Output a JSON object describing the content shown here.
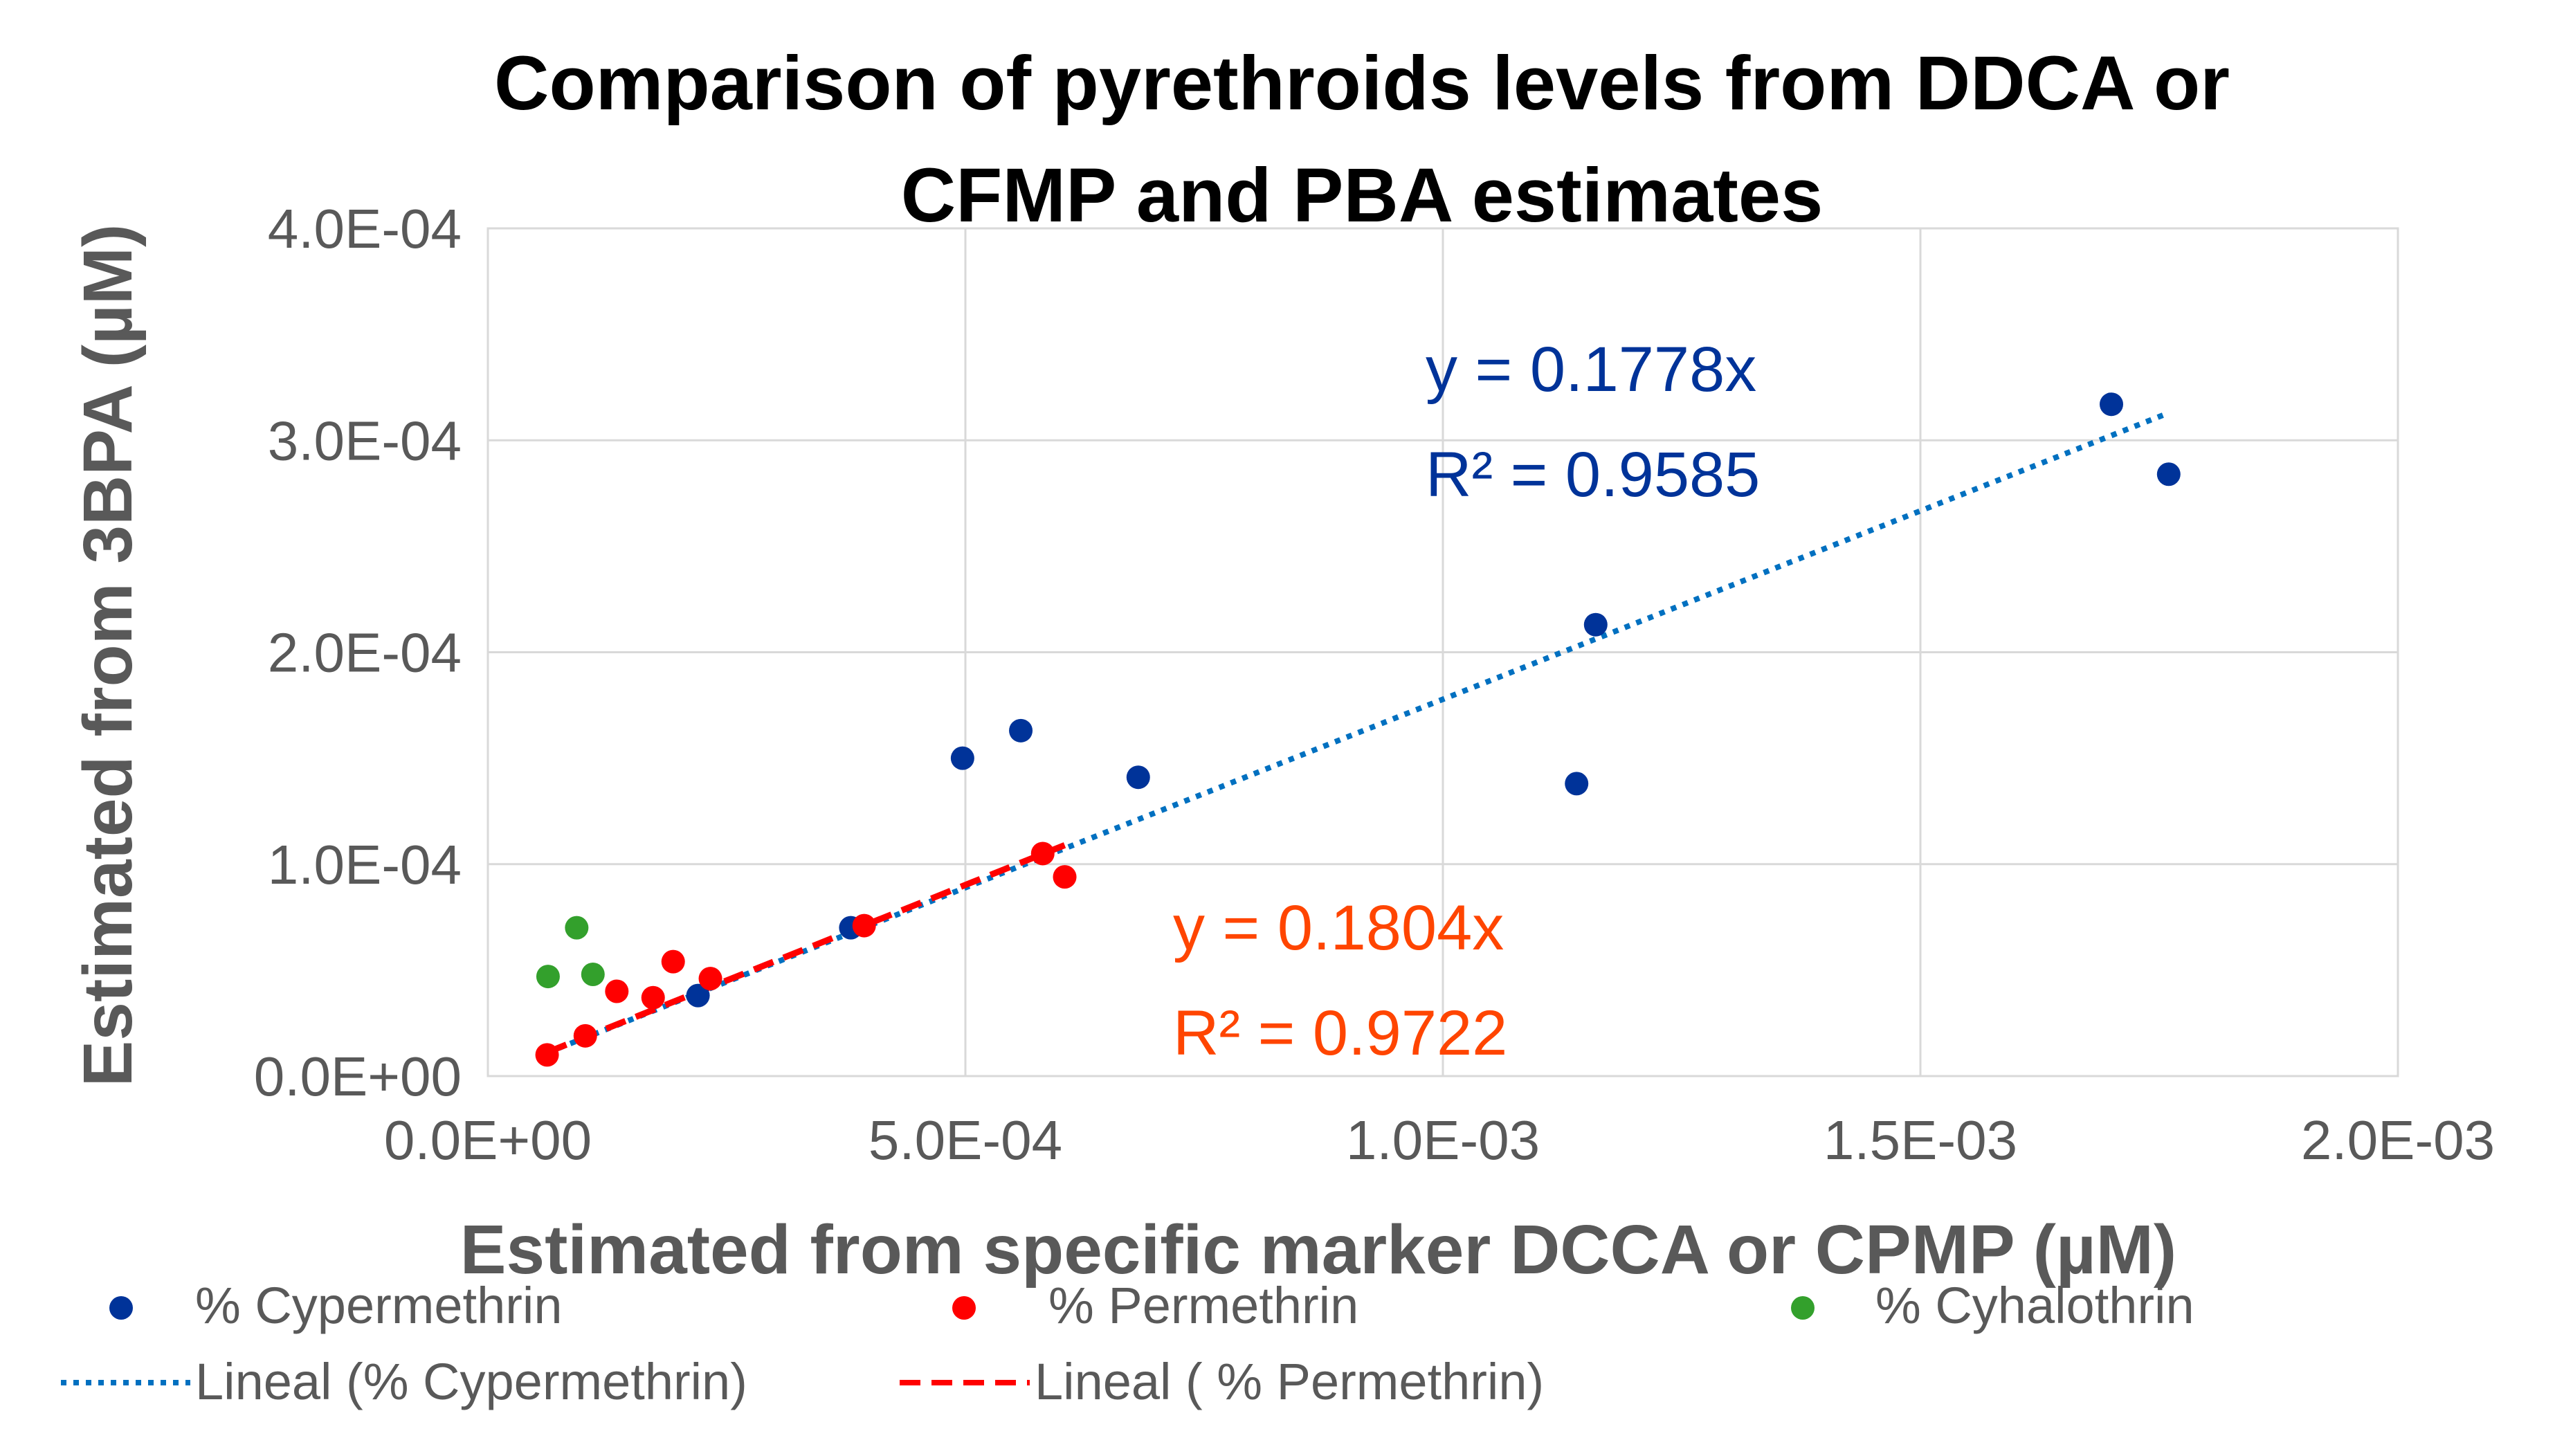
{
  "chart_data": {
    "type": "scatter",
    "title": "Comparison of pyrethroids levels from DDCA or CFMP and PBA estimates",
    "title_lines": [
      "Comparison of pyrethroids levels from DDCA or",
      "CFMP and PBA estimates"
    ],
    "xlabel": "Estimated from specific marker DCCA or CPMP (µM)",
    "ylabel": "Estimated from 3BPA (µM)",
    "xlim": [
      0,
      0.002
    ],
    "ylim": [
      0,
      0.0004
    ],
    "x_ticks": [
      0,
      0.0005,
      0.001,
      0.0015,
      0.002
    ],
    "x_tick_labels": [
      "0.0E+00",
      "5.0E-04",
      "1.0E-03",
      "1.5E-03",
      "2.0E-03"
    ],
    "y_ticks": [
      0,
      0.0001,
      0.0002,
      0.0003,
      0.0004
    ],
    "y_tick_labels": [
      "0.0E+00",
      "1.0E-04",
      "2.0E-04",
      "3.0E-04",
      "4.0E-04"
    ],
    "grid": true,
    "legend_position": "bottom",
    "series": [
      {
        "name": "% Cypermethrin",
        "color": "#003399",
        "points": [
          {
            "x": 0.00022,
            "y": 3.8e-05
          },
          {
            "x": 0.00038,
            "y": 7e-05
          },
          {
            "x": 0.000497,
            "y": 0.00015
          },
          {
            "x": 0.000558,
            "y": 0.000163
          },
          {
            "x": 0.000681,
            "y": 0.000141
          },
          {
            "x": 0.00114,
            "y": 0.000138
          },
          {
            "x": 0.00116,
            "y": 0.000213
          },
          {
            "x": 0.0017,
            "y": 0.000317
          },
          {
            "x": 0.00176,
            "y": 0.000284
          }
        ]
      },
      {
        "name": "% Permethrin",
        "color": "#ff0000",
        "points": [
          {
            "x": 6.2e-05,
            "y": 1e-05
          },
          {
            "x": 0.000102,
            "y": 1.9e-05
          },
          {
            "x": 0.000135,
            "y": 4e-05
          },
          {
            "x": 0.000173,
            "y": 3.7e-05
          },
          {
            "x": 0.000194,
            "y": 5.4e-05
          },
          {
            "x": 0.000233,
            "y": 4.6e-05
          },
          {
            "x": 0.000394,
            "y": 7.1e-05
          },
          {
            "x": 0.000581,
            "y": 0.000105
          },
          {
            "x": 0.000604,
            "y": 9.4e-05
          }
        ]
      },
      {
        "name": "% Cyhalothrin",
        "color": "#33a02c",
        "points": [
          {
            "x": 6.3e-05,
            "y": 4.7e-05
          },
          {
            "x": 9.3e-05,
            "y": 7e-05
          },
          {
            "x": 0.00011,
            "y": 4.8e-05
          }
        ]
      }
    ],
    "trendlines": [
      {
        "name": "Lineal (% Cypermethrin)",
        "series": "% Cypermethrin",
        "color": "#0070c0",
        "style": "dotted",
        "slope": 0.1778,
        "x_range": [
          6.2e-05,
          0.00176
        ],
        "equation": "y = 0.1778x",
        "r2": "R² = 0.9585"
      },
      {
        "name": "Lineal ( % Permethrin)",
        "series": "% Permethrin",
        "color": "#ff0000",
        "style": "dashed",
        "slope": 0.1804,
        "x_range": [
          6.2e-05,
          0.000604
        ],
        "equation": "y = 0.1804x",
        "r2": "R² = 0.9722"
      }
    ],
    "annotations": [
      {
        "lines": [
          "y = 0.1778x",
          "R² = 0.9585"
        ],
        "color": "#003399"
      },
      {
        "lines": [
          "y = 0.1804x",
          "R² = 0.9722"
        ],
        "color": "#ff4500"
      }
    ]
  }
}
